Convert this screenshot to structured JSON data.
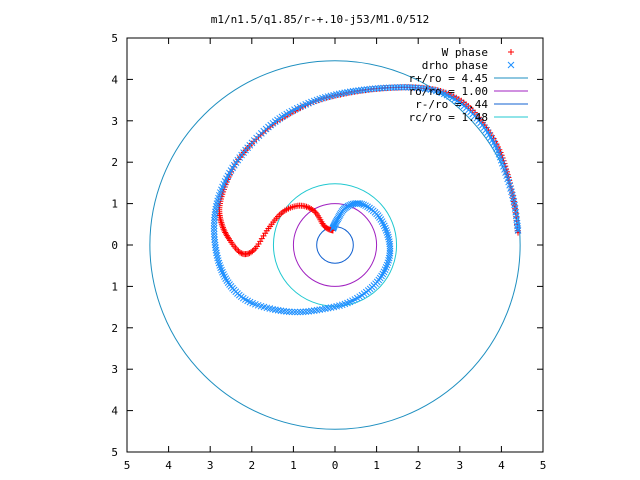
{
  "chart_data": {
    "type": "line",
    "title": "m1/n1.5/q1.85/r-+.10-j53/M1.0/512",
    "xlim": [
      -5,
      5
    ],
    "ylim": [
      -5,
      5
    ],
    "xticks": [
      "5",
      "4",
      "3",
      "2",
      "1",
      "0",
      "1",
      "2",
      "3",
      "4",
      "5"
    ],
    "yticks": [
      "5",
      "4",
      "3",
      "2",
      "1",
      "0",
      "1",
      "2",
      "3",
      "4",
      "5"
    ],
    "grid": false,
    "legend_position": "top-right",
    "legend": [
      {
        "label": "W phase",
        "color": "#ff0000",
        "marker": "+"
      },
      {
        "label": "drho phase",
        "color": "#1e90ff",
        "marker": "x"
      },
      {
        "label": "r+/ro = 4.45",
        "color": "#1e8fc0",
        "marker": "line"
      },
      {
        "label": "ro/ro = 1.00",
        "color": "#a020c0",
        "marker": "line"
      },
      {
        "label": "r-/ro = .44",
        "color": "#1060d0",
        "marker": "line"
      },
      {
        "label": "rc/ro = 1.48",
        "color": "#20c8d0",
        "marker": "line"
      }
    ],
    "circles": [
      {
        "name": "r+/ro = 4.45",
        "r": 4.45,
        "color": "#1e8fc0"
      },
      {
        "name": "ro/ro = 1.00",
        "r": 1.0,
        "color": "#a020c0"
      },
      {
        "name": "r-/ro = .44",
        "r": 0.44,
        "color": "#1060d0"
      },
      {
        "name": "rc/ro = 1.48",
        "r": 1.48,
        "color": "#20c8d0"
      }
    ],
    "series": [
      {
        "name": "W phase",
        "color": "#ff0000",
        "marker": "+",
        "points": [
          [
            4.4,
            0.3
          ],
          [
            4.3,
            1.05
          ],
          [
            4.15,
            1.7
          ],
          [
            3.95,
            2.3
          ],
          [
            3.6,
            2.9
          ],
          [
            3.15,
            3.4
          ],
          [
            2.6,
            3.7
          ],
          [
            2.0,
            3.8
          ],
          [
            1.4,
            3.8
          ],
          [
            0.8,
            3.75
          ],
          [
            0.2,
            3.65
          ],
          [
            -0.4,
            3.5
          ],
          [
            -0.95,
            3.25
          ],
          [
            -1.5,
            2.9
          ],
          [
            -2.0,
            2.45
          ],
          [
            -2.4,
            1.95
          ],
          [
            -2.65,
            1.4
          ],
          [
            -2.78,
            0.9
          ],
          [
            -2.72,
            0.5
          ],
          [
            -2.55,
            0.15
          ],
          [
            -2.25,
            -0.2
          ],
          [
            -1.95,
            -0.12
          ],
          [
            -1.6,
            0.4
          ],
          [
            -1.25,
            0.8
          ],
          [
            -0.85,
            0.95
          ],
          [
            -0.5,
            0.82
          ],
          [
            -0.25,
            0.45
          ],
          [
            -0.05,
            0.35
          ]
        ]
      },
      {
        "name": "drho phase",
        "color": "#1e90ff",
        "marker": "x",
        "points": [
          [
            4.4,
            0.35
          ],
          [
            4.3,
            1.05
          ],
          [
            4.1,
            1.75
          ],
          [
            3.85,
            2.4
          ],
          [
            3.5,
            2.95
          ],
          [
            3.05,
            3.4
          ],
          [
            2.5,
            3.7
          ],
          [
            1.9,
            3.8
          ],
          [
            1.3,
            3.8
          ],
          [
            0.7,
            3.75
          ],
          [
            0.1,
            3.65
          ],
          [
            -0.5,
            3.48
          ],
          [
            -1.1,
            3.2
          ],
          [
            -1.6,
            2.85
          ],
          [
            -2.1,
            2.35
          ],
          [
            -2.5,
            1.8
          ],
          [
            -2.78,
            1.2
          ],
          [
            -2.9,
            0.6
          ],
          [
            -2.88,
            0.0
          ],
          [
            -2.75,
            -0.55
          ],
          [
            -2.5,
            -1.0
          ],
          [
            -2.1,
            -1.35
          ],
          [
            -1.5,
            -1.55
          ],
          [
            -0.9,
            -1.62
          ],
          [
            -0.3,
            -1.55
          ],
          [
            0.3,
            -1.4
          ],
          [
            0.8,
            -1.1
          ],
          [
            1.15,
            -0.7
          ],
          [
            1.32,
            -0.2
          ],
          [
            1.25,
            0.3
          ],
          [
            1.0,
            0.75
          ],
          [
            0.6,
            1.0
          ],
          [
            0.25,
            0.9
          ],
          [
            0.05,
            0.6
          ],
          [
            -0.05,
            0.4
          ]
        ]
      }
    ]
  }
}
